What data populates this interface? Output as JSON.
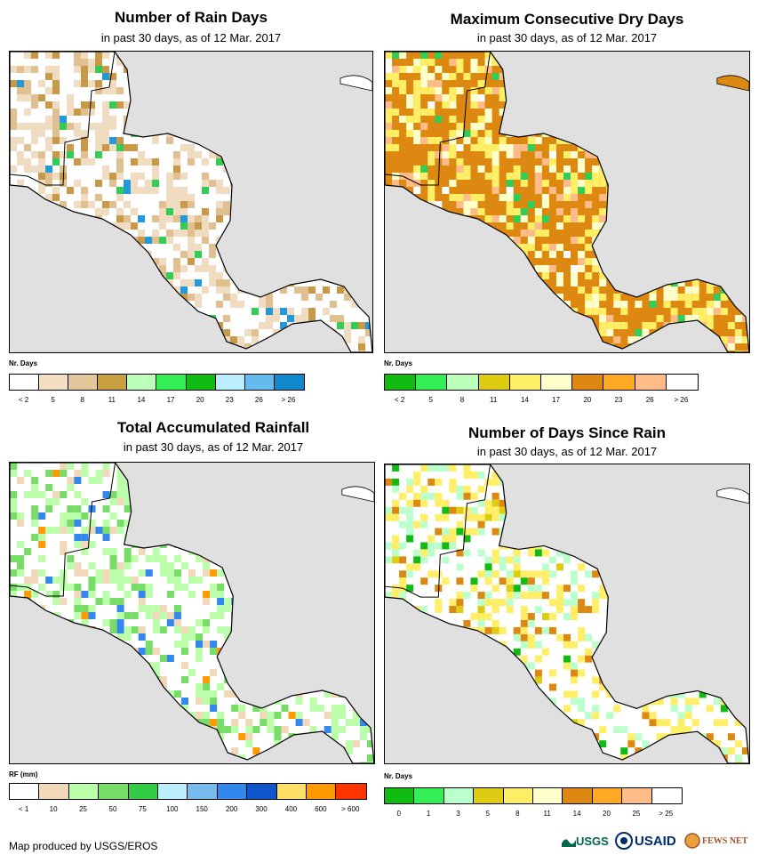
{
  "panels": [
    {
      "title": "Number of Rain Days",
      "subtitle": "in past 30 days, as of 12 Mar. 2017",
      "legend": {
        "label": "Nr. Days",
        "colors": [
          "#ffffff",
          "#f5dfc2",
          "#e2c79a",
          "#c8a040",
          "#bbffbb",
          "#33ee55",
          "#11bb11",
          "#bbeeff",
          "#66bbee",
          "#1188cc"
        ],
        "ticks": [
          "< 2",
          "5",
          "8",
          "11",
          "14",
          "17",
          "20",
          "23",
          "26",
          "> 26"
        ]
      },
      "map": {
        "base": "#ffffff",
        "accent": [
          "#f0dcc0",
          "#e0c090",
          "#c89a48"
        ],
        "highlight": [
          "#33cc55",
          "#2299dd"
        ]
      }
    },
    {
      "title": "Maximum Consecutive Dry Days",
      "subtitle": "in past 30 days, as of 12 Mar. 2017",
      "legend": {
        "label": "Nr. Days",
        "colors": [
          "#11bb11",
          "#33ee55",
          "#bbffbb",
          "#ddcc11",
          "#ffee66",
          "#ffffcc",
          "#dd8811",
          "#ffaa22",
          "#ffbb88",
          "#ffffff"
        ],
        "ticks": [
          "< 2",
          "5",
          "8",
          "11",
          "14",
          "17",
          "20",
          "23",
          "26",
          "> 26"
        ]
      },
      "map": {
        "base": "#dd8811",
        "accent": [
          "#ffee66",
          "#ffffcc",
          "#ffbb88"
        ],
        "highlight": [
          "#33cc55",
          "#ffffff"
        ]
      }
    },
    {
      "title": "Total Accumulated Rainfall",
      "subtitle": "in past 30 days, as of 12 Mar. 2017",
      "legend": {
        "label": "RF (mm)",
        "colors": [
          "#ffffff",
          "#f0d8b8",
          "#bbffaa",
          "#77dd66",
          "#33cc44",
          "#bbeeff",
          "#77bbee",
          "#3388ee",
          "#1155cc",
          "#ffe066",
          "#ff9900",
          "#ff3300"
        ],
        "ticks": [
          "< 1",
          "10",
          "25",
          "50",
          "75",
          "100",
          "150",
          "200",
          "300",
          "400",
          "600",
          "> 600"
        ]
      },
      "map": {
        "base": "#ffffff",
        "accent": [
          "#bbffaa",
          "#77dd66",
          "#f0d8b8"
        ],
        "highlight": [
          "#3388ee",
          "#ff9900"
        ]
      }
    },
    {
      "title": "Number of Days Since Rain",
      "subtitle": "in past 30 days, as of 12 Mar. 2017",
      "legend": {
        "label": "Nr. Days",
        "colors": [
          "#11bb11",
          "#33ee55",
          "#bbffcc",
          "#ddcc11",
          "#ffee66",
          "#ffffcc",
          "#dd8811",
          "#ffaa22",
          "#ffbb88",
          "#ffffff"
        ],
        "ticks": [
          "0",
          "1",
          "3",
          "5",
          "8",
          "11",
          "14",
          "20",
          "25",
          "> 25"
        ]
      },
      "map": {
        "base": "#ffffff",
        "accent": [
          "#ffee66",
          "#bbffcc",
          "#dd8811"
        ],
        "highlight": [
          "#11bb11",
          "#ddcc11"
        ]
      }
    }
  ],
  "credit": "Map produced by USGS/EROS",
  "logos": {
    "usgs": "USGS",
    "usaid": "USAID",
    "fews": "FEWS NET"
  }
}
